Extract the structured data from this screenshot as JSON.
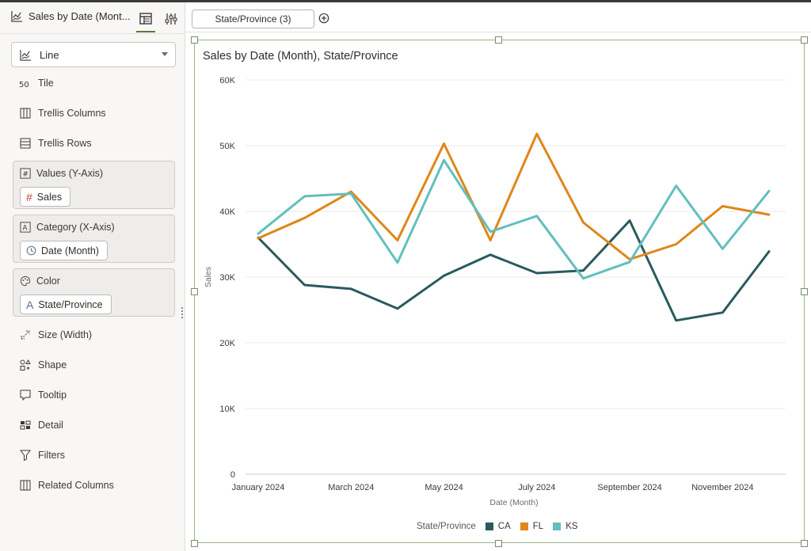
{
  "app": {
    "tab_title": "Sales by Date (Mont...",
    "icons": [
      "line-chart-icon",
      "data-panel-icon",
      "properties-icon"
    ]
  },
  "grammar": {
    "viz_type": "Line",
    "items": [
      {
        "name": "tile",
        "label": "Tile",
        "icon": "tile-icon"
      },
      {
        "name": "trellis-columns",
        "label": "Trellis Columns",
        "icon": "trellis-columns-icon"
      },
      {
        "name": "trellis-rows",
        "label": "Trellis Rows",
        "icon": "trellis-rows-icon"
      }
    ],
    "wells": [
      {
        "name": "values",
        "label": "Values (Y-Axis)",
        "icon": "number-icon",
        "chip": "Sales",
        "chip_icon": "measure-hash-icon"
      },
      {
        "name": "category",
        "label": "Category (X-Axis)",
        "icon": "attribute-a-icon",
        "chip": "Date (Month)",
        "chip_icon": "clock-icon"
      },
      {
        "name": "color",
        "label": "Color",
        "icon": "palette-icon",
        "chip": "State/Province",
        "chip_icon": "attribute-a-icon"
      }
    ],
    "items2": [
      {
        "name": "size",
        "label": "Size (Width)",
        "icon": "size-icon"
      },
      {
        "name": "shape",
        "label": "Shape",
        "icon": "shape-icon"
      },
      {
        "name": "tooltip",
        "label": "Tooltip",
        "icon": "tooltip-icon"
      },
      {
        "name": "detail",
        "label": "Detail",
        "icon": "detail-icon"
      },
      {
        "name": "filters",
        "label": "Filters",
        "icon": "filter-icon"
      },
      {
        "name": "related-columns",
        "label": "Related Columns",
        "icon": "related-columns-icon"
      }
    ]
  },
  "filter_bar": {
    "pill": "State/Province (3)",
    "add_icon": "add-circle-icon"
  },
  "colors": {
    "CA": "#2a5a5e",
    "FL": "#e0861a",
    "KS": "#62bfbd"
  },
  "chart_data": {
    "type": "line",
    "title": "Sales by Date (Month), State/Province",
    "xlabel": "Date (Month)",
    "ylabel": "Sales",
    "ylim": [
      0,
      60000
    ],
    "yticks": [
      "0",
      "10K",
      "20K",
      "30K",
      "40K",
      "50K",
      "60K"
    ],
    "x": [
      "January 2024",
      "February 2024",
      "March 2024",
      "April 2024",
      "May 2024",
      "June 2024",
      "July 2024",
      "August 2024",
      "September 2024",
      "October 2024",
      "November 2024",
      "December 2024"
    ],
    "xtick_labels": [
      "January 2024",
      "March 2024",
      "May 2024",
      "July 2024",
      "September 2024",
      "November 2024"
    ],
    "legend_title": "State/Province",
    "legend_position": "bottom",
    "grid": true,
    "series": [
      {
        "name": "CA",
        "values": [
          36000,
          28800,
          28200,
          25200,
          30200,
          33400,
          30600,
          31000,
          38600,
          23400,
          24600,
          33900
        ]
      },
      {
        "name": "FL",
        "values": [
          35900,
          39000,
          43000,
          35600,
          50300,
          35600,
          51800,
          38300,
          32700,
          35000,
          40800,
          39500
        ]
      },
      {
        "name": "KS",
        "values": [
          36600,
          42300,
          42700,
          32200,
          47800,
          36900,
          39300,
          29800,
          32300,
          43900,
          34300,
          43100
        ]
      }
    ]
  }
}
